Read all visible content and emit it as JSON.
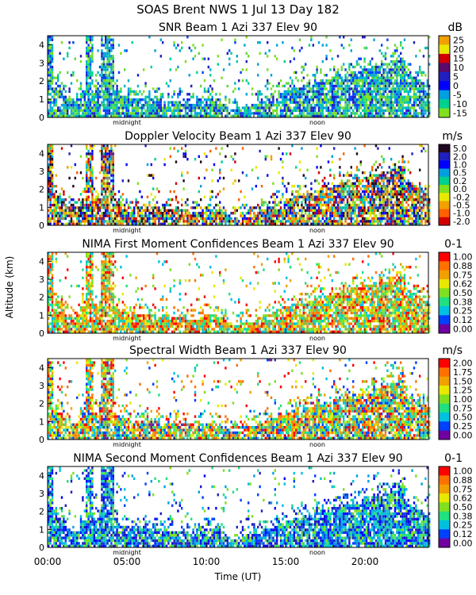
{
  "header": {
    "title": "SOAS Brent NWS    1 Jul 13 Day 182"
  },
  "x_axis": {
    "label": "Time (UT)",
    "range_hours": [
      0,
      24
    ],
    "ticks": [
      {
        "hour": 0,
        "label": "00:00"
      },
      {
        "hour": 5,
        "label": "05:00"
      },
      {
        "hour": 10,
        "label": "10:00"
      },
      {
        "hour": 15,
        "label": "15:00"
      },
      {
        "hour": 20,
        "label": "20:00"
      }
    ],
    "markers": [
      {
        "hour": 5,
        "label": "midnight"
      },
      {
        "hour": 17,
        "label": "noon"
      }
    ]
  },
  "y_axis": {
    "label": "Altitude (km)",
    "range_km": [
      0,
      4.5
    ],
    "ticks": [
      0,
      1,
      2,
      3,
      4
    ]
  },
  "chart_data": [
    {
      "type": "heatmap",
      "title": "SNR Beam 1 Azi 337 Elev 90",
      "unit": "dB",
      "colorbar_labels": [
        "25",
        "20",
        "15",
        "10",
        "5",
        "0",
        "-5",
        "-10",
        "-15"
      ]
    },
    {
      "type": "heatmap",
      "title": "Doppler Velocity Beam 1 Azi 337 Elev 90",
      "unit": "m/s",
      "colorbar_labels": [
        "5.0",
        "2.0",
        "1.0",
        "0.5",
        "0.2",
        "0.0",
        "-0.2",
        "-0.5",
        "-1.0",
        "-2.0"
      ]
    },
    {
      "type": "heatmap",
      "title": "NIMA First Moment Confidences Beam 1 Azi 337 Elev 90",
      "unit": "0-1",
      "colorbar_labels": [
        "1.00",
        "0.88",
        "0.75",
        "0.62",
        "0.50",
        "0.38",
        "0.25",
        "0.12",
        "0.00"
      ]
    },
    {
      "type": "heatmap",
      "title": "Spectral Width Beam 1 Azi 337 Elev 90",
      "unit": "m/s",
      "colorbar_labels": [
        "2.00",
        "1.75",
        "1.50",
        "1.25",
        "1.00",
        "0.75",
        "0.50",
        "0.25",
        "0.00"
      ]
    },
    {
      "type": "heatmap",
      "title": "NIMA Second Moment Confidences Beam 1 Azi 337 Elev 90",
      "unit": "0-1",
      "colorbar_labels": [
        "1.00",
        "0.88",
        "0.75",
        "0.62",
        "0.50",
        "0.38",
        "0.25",
        "0.12",
        "0.00"
      ]
    }
  ],
  "colors": {
    "colorbar_9": [
      "#f0a000",
      "#e8e800",
      "#d00000",
      "#5a0a6a",
      "#2020c0",
      "#0000ff",
      "#00a0e0",
      "#00d090",
      "#80e020"
    ],
    "colorbar_10": [
      "#200820",
      "#2020c0",
      "#0000ff",
      "#00a0e0",
      "#00d090",
      "#80e020",
      "#e8e800",
      "#f0a000",
      "#ff6000",
      "#d00000"
    ],
    "colorbar_rev": [
      "#ff0000",
      "#ff7000",
      "#f0a000",
      "#e8e800",
      "#80e020",
      "#20e080",
      "#00c0e0",
      "#0040ff",
      "#7000a0"
    ]
  }
}
